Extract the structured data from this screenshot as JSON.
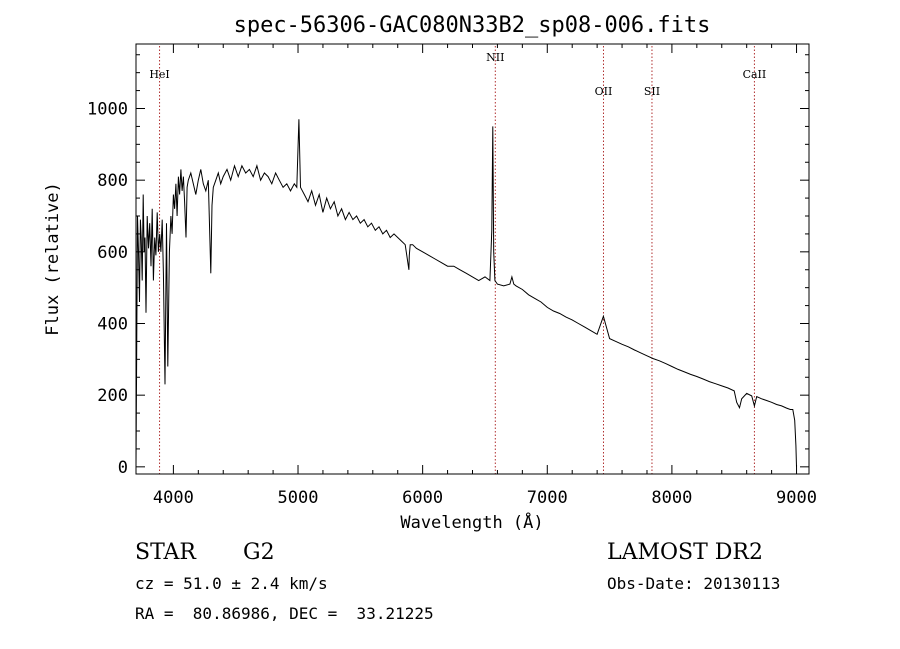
{
  "chart_data": {
    "type": "line",
    "title": "spec-56306-GAC080N33B2_sp08-006.fits",
    "xlabel": "Wavelength (Å)",
    "ylabel": "Flux (relative)",
    "xlim": [
      3700,
      9100
    ],
    "ylim": [
      -20,
      1180
    ],
    "xticks": [
      4000,
      5000,
      6000,
      7000,
      8000,
      9000
    ],
    "yticks": [
      0,
      200,
      400,
      600,
      800,
      1000
    ],
    "grid": false,
    "lines": [
      {
        "name": "HeI",
        "x": 3889
      },
      {
        "name": "NII",
        "x": 6583
      },
      {
        "name": "OII",
        "x": 7451
      },
      {
        "name": "SII",
        "x": 7840
      },
      {
        "name": "CaII",
        "x": 8662
      }
    ],
    "spectrum": {
      "x": [
        3700,
        3705,
        3712,
        3720,
        3728,
        3735,
        3742,
        3750,
        3758,
        3765,
        3772,
        3780,
        3790,
        3800,
        3810,
        3820,
        3830,
        3840,
        3850,
        3860,
        3870,
        3880,
        3890,
        3900,
        3910,
        3920,
        3933,
        3945,
        3955,
        3968,
        3980,
        3990,
        4000,
        4010,
        4020,
        4030,
        4040,
        4050,
        4060,
        4070,
        4080,
        4090,
        4101,
        4110,
        4120,
        4140,
        4160,
        4180,
        4200,
        4220,
        4240,
        4260,
        4280,
        4300,
        4310,
        4320,
        4340,
        4360,
        4380,
        4400,
        4430,
        4460,
        4490,
        4520,
        4550,
        4580,
        4610,
        4640,
        4670,
        4700,
        4730,
        4760,
        4790,
        4820,
        4850,
        4880,
        4910,
        4940,
        4970,
        4990,
        5007,
        5020,
        5050,
        5080,
        5110,
        5140,
        5170,
        5200,
        5230,
        5260,
        5290,
        5320,
        5350,
        5380,
        5410,
        5440,
        5470,
        5500,
        5530,
        5560,
        5590,
        5620,
        5650,
        5680,
        5710,
        5740,
        5770,
        5800,
        5830,
        5860,
        5890,
        5893,
        5900,
        5920,
        5950,
        6000,
        6050,
        6100,
        6150,
        6200,
        6250,
        6300,
        6350,
        6400,
        6450,
        6500,
        6540,
        6555,
        6563,
        6570,
        6580,
        6600,
        6650,
        6700,
        6716,
        6731,
        6750,
        6800,
        6850,
        6900,
        6950,
        7000,
        7050,
        7100,
        7150,
        7200,
        7250,
        7300,
        7350,
        7400,
        7450,
        7500,
        7550,
        7600,
        7650,
        7700,
        7750,
        7800,
        7850,
        7900,
        7950,
        8000,
        8050,
        8100,
        8150,
        8200,
        8250,
        8300,
        8350,
        8400,
        8450,
        8500,
        8520,
        8542,
        8560,
        8600,
        8640,
        8662,
        8680,
        8720,
        8760,
        8800,
        8840,
        8880,
        8920,
        8950,
        8970,
        8985,
        8995,
        9000
      ],
      "y": [
        0,
        280,
        700,
        600,
        460,
        690,
        640,
        520,
        760,
        600,
        640,
        430,
        700,
        610,
        680,
        560,
        720,
        520,
        640,
        590,
        710,
        600,
        650,
        600,
        690,
        540,
        230,
        680,
        280,
        600,
        700,
        650,
        760,
        720,
        790,
        700,
        810,
        760,
        830,
        770,
        810,
        740,
        640,
        780,
        800,
        820,
        790,
        760,
        800,
        830,
        790,
        770,
        800,
        540,
        730,
        780,
        800,
        820,
        790,
        810,
        830,
        800,
        840,
        810,
        840,
        820,
        830,
        810,
        840,
        800,
        820,
        810,
        790,
        820,
        800,
        780,
        790,
        770,
        790,
        780,
        970,
        780,
        760,
        740,
        770,
        730,
        760,
        710,
        750,
        720,
        740,
        700,
        720,
        690,
        710,
        690,
        700,
        680,
        690,
        670,
        680,
        660,
        670,
        650,
        660,
        640,
        650,
        640,
        630,
        620,
        550,
        590,
        620,
        620,
        610,
        600,
        590,
        580,
        570,
        560,
        560,
        550,
        540,
        530,
        520,
        530,
        520,
        660,
        950,
        600,
        520,
        510,
        505,
        510,
        530,
        510,
        505,
        495,
        480,
        470,
        460,
        445,
        435,
        428,
        418,
        410,
        400,
        390,
        380,
        370,
        420,
        358,
        350,
        342,
        335,
        326,
        318,
        310,
        302,
        296,
        288,
        280,
        272,
        265,
        258,
        252,
        245,
        238,
        232,
        226,
        220,
        212,
        180,
        165,
        190,
        205,
        198,
        170,
        196,
        190,
        185,
        180,
        174,
        170,
        164,
        160,
        160,
        130,
        60,
        0
      ]
    }
  },
  "info": {
    "class_label": "STAR",
    "subclass": "G2",
    "survey": "LAMOST DR2",
    "cz": "cz = 51.0 ± 2.4 km/s",
    "obs_date": "Obs-Date: 20130113",
    "coords": "RA =  80.86986, DEC =  33.21225"
  }
}
